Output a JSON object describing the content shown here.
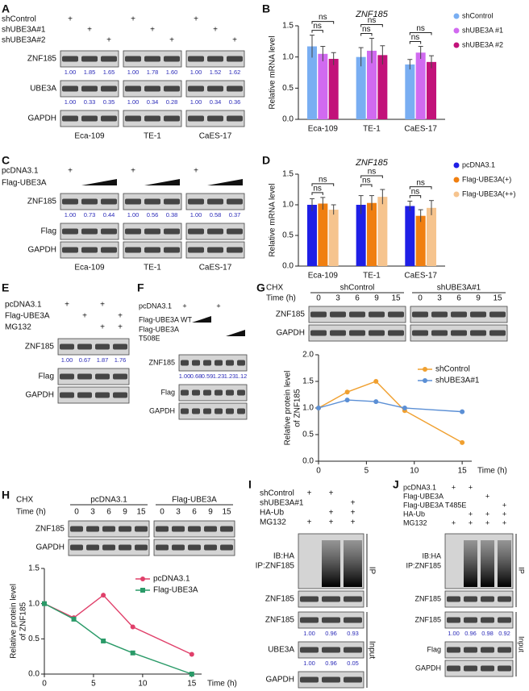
{
  "chart_data": [
    {
      "type": "bar",
      "letter": "B",
      "title": "ZNF185",
      "ylabel": "Relative mRNA level",
      "categories": [
        "Eca-109",
        "TE-1",
        "CaES-17"
      ],
      "series": [
        {
          "name": "shControl",
          "color": "#79aef2",
          "values": [
            1.17,
            1.0,
            0.88
          ],
          "errors": [
            0.18,
            0.15,
            0.08
          ]
        },
        {
          "name": "shUBE3A #1",
          "color": "#d16af0",
          "values": [
            1.05,
            1.1,
            1.07
          ],
          "errors": [
            0.12,
            0.2,
            0.1
          ]
        },
        {
          "name": "shUBE3A #2",
          "color": "#c2127a",
          "values": [
            0.97,
            1.03,
            0.92
          ],
          "errors": [
            0.1,
            0.15,
            0.1
          ]
        }
      ],
      "ylim": [
        0,
        1.5
      ],
      "yticks": [
        {
          "value": 0,
          "label": "0.0"
        },
        0.5,
        {
          "value": 1,
          "label": "1.0"
        },
        1.5
      ],
      "annotations": [
        "ns",
        "ns",
        "ns",
        "ns",
        "ns",
        "ns"
      ],
      "legend": "right"
    },
    {
      "type": "bar",
      "letter": "D",
      "title": "ZNF185",
      "ylabel": "Relative mRNA level",
      "categories": [
        "Eca-109",
        "TE-1",
        "CaES-17"
      ],
      "series": [
        {
          "name": "pcDNA3.1",
          "color": "#1f1fe6",
          "values": [
            1.0,
            1.0,
            0.98
          ],
          "errors": [
            0.1,
            0.15,
            0.08
          ]
        },
        {
          "name": "Flag-UBE3A(+)",
          "color": "#f07f10",
          "values": [
            1.02,
            1.03,
            0.82
          ],
          "errors": [
            0.1,
            0.12,
            0.1
          ]
        },
        {
          "name": "Flag-UBE3A(++)",
          "color": "#f6c48e",
          "values": [
            0.92,
            1.13,
            0.95
          ],
          "errors": [
            0.08,
            0.12,
            0.12
          ]
        }
      ],
      "ylim": [
        0,
        1.5
      ],
      "yticks": [
        {
          "value": 0,
          "label": "0.0"
        },
        0.5,
        {
          "value": 1,
          "label": "1.0"
        },
        1.5
      ],
      "annotations": [
        "ns",
        "ns",
        "ns",
        "ns",
        "ns",
        "ns"
      ],
      "legend": "right"
    },
    {
      "type": "line",
      "ylabel": [
        "Relative protein level",
        "of ZNF185"
      ],
      "xlabel": "Time (h)",
      "x": [
        0,
        3,
        6,
        9,
        15
      ],
      "series": [
        {
          "name": "shControl",
          "color": "#f0a030",
          "marker": "circle",
          "values": [
            1.0,
            1.3,
            1.5,
            0.95,
            0.35
          ]
        },
        {
          "name": "shUBE3A#1",
          "color": "#5b8fd5",
          "marker": "circle",
          "values": [
            1.0,
            1.15,
            1.12,
            1.0,
            0.93
          ]
        }
      ],
      "xlim": [
        0,
        16
      ],
      "xticks": [
        0,
        5,
        10,
        15
      ],
      "ylim": [
        0,
        2
      ],
      "yticks": [
        {
          "value": 0,
          "label": "0.0"
        },
        0.5,
        {
          "value": 1,
          "label": "1.0"
        },
        1.5,
        {
          "value": 2,
          "label": "2.0"
        }
      ],
      "legend": "upper right"
    },
    {
      "type": "line",
      "ylabel": [
        "Relative protein level",
        "of ZNF185"
      ],
      "xlabel": "Time (h)",
      "x": [
        0,
        3,
        6,
        9,
        15
      ],
      "series": [
        {
          "name": "pcDNA3.1",
          "color": "#e0406a",
          "marker": "circle",
          "values": [
            1.0,
            0.8,
            1.12,
            0.67,
            0.28
          ]
        },
        {
          "name": "Flag-UBE3A",
          "color": "#2a9a68",
          "marker": "square",
          "values": [
            1.0,
            0.78,
            0.47,
            0.3,
            0.0
          ]
        }
      ],
      "xlim": [
        0,
        16
      ],
      "xticks": [
        0,
        5,
        10,
        15
      ],
      "ylim": [
        0,
        1.5
      ],
      "yticks": [
        {
          "value": 0,
          "label": "0.0"
        },
        0.5,
        {
          "value": 1,
          "label": "1.0"
        },
        1.5
      ],
      "legend": "upper right"
    }
  ],
  "blots": [
    {
      "letter": "A",
      "treatments": [
        {
          "label": "shControl",
          "marks": [
            "+",
            null,
            null,
            "+",
            null,
            null,
            "+",
            null,
            null
          ]
        },
        {
          "label": "shUBE3A#1",
          "marks": [
            null,
            "+",
            null,
            null,
            "+",
            null,
            null,
            "+",
            null
          ]
        },
        {
          "label": "shUBE3A#2",
          "marks": [
            null,
            null,
            "+",
            null,
            null,
            "+",
            null,
            null,
            "+"
          ]
        }
      ],
      "sections": [
        {
          "rows": [
            {
              "label": "ZNF185",
              "quant": [
                "1.00",
                "1.85",
                "1.65",
                "1.00",
                "1.78",
                "1.60",
                "1.00",
                "1.52",
                "1.62"
              ]
            },
            {
              "label": "UBE3A",
              "quant": [
                "1.00",
                "0.33",
                "0.35",
                "1.00",
                "0.34",
                "0.28",
                "1.00",
                "0.34",
                "0.36"
              ]
            },
            {
              "label": "GAPDH"
            }
          ]
        }
      ],
      "groups": [
        "Eca-109",
        "TE-1",
        "CaES-17"
      ]
    },
    {
      "letter": "C",
      "treatments": [
        {
          "label": "pcDNA3.1",
          "marks": [
            "+",
            null,
            null,
            "+",
            null,
            null,
            "+",
            null,
            null
          ]
        },
        {
          "label": "Flag-UBE3A"
        }
      ],
      "sections": [
        {
          "rows": [
            {
              "label": "ZNF185",
              "quant": [
                "1.00",
                "0.73",
                "0.44",
                "1.00",
                "0.56",
                "0.38",
                "1.00",
                "0.58",
                "0.37"
              ]
            },
            {
              "label": "Flag"
            },
            {
              "label": "GAPDH"
            }
          ]
        }
      ],
      "groups": [
        "Eca-109",
        "TE-1",
        "CaES-17"
      ]
    },
    {
      "letter": "E",
      "treatments": [
        {
          "label": "pcDNA3.1",
          "marks": [
            "+",
            null,
            "+",
            null
          ]
        },
        {
          "label": "Flag-UBE3A",
          "marks": [
            null,
            "+",
            null,
            "+"
          ]
        },
        {
          "label": "MG132",
          "marks": [
            null,
            null,
            "+",
            "+"
          ]
        }
      ],
      "sections": [
        {
          "rows": [
            {
              "label": "ZNF185",
              "quant": [
                "1.00",
                "0.67",
                "1.87",
                "1.76"
              ]
            },
            {
              "label": "Flag"
            },
            {
              "label": "GAPDH"
            }
          ]
        }
      ]
    },
    {
      "letter": "F",
      "treatments": [
        {
          "label": "pcDNA3.1",
          "marks": [
            "+",
            null,
            null,
            "+",
            null,
            null
          ]
        },
        {
          "label": "Flag-UBE3A WT"
        },
        {
          "label": [
            "Flag-UBE3A",
            "T508E"
          ]
        }
      ],
      "sections": [
        {
          "rows": [
            {
              "label": "ZNF185",
              "quant": [
                "1.00",
                "0.68",
                "0.59",
                "1.23",
                "1.23",
                "1.12"
              ]
            },
            {
              "label": "Flag"
            },
            {
              "label": "GAPDH"
            }
          ]
        }
      ]
    },
    {
      "letter": "G",
      "headers": {
        "label": "CHX",
        "groups": [
          "shControl",
          "shUBE3A#1"
        ]
      },
      "treatments": [
        {
          "label": "Time (h)",
          "marks": [
            0,
            3,
            6,
            9,
            15,
            0,
            3,
            6,
            9,
            15
          ]
        }
      ],
      "sections": [
        {
          "rows": [
            {
              "label": "ZNF185"
            },
            {
              "label": "GAPDH"
            }
          ]
        }
      ]
    },
    {
      "letter": "H",
      "headers": {
        "label": "CHX",
        "groups": [
          "pcDNA3.1",
          "Flag-UBE3A"
        ]
      },
      "treatments": [
        {
          "label": "Time (h)",
          "marks": [
            0,
            3,
            6,
            9,
            15,
            0,
            3,
            6,
            9,
            15
          ]
        }
      ],
      "sections": [
        {
          "rows": [
            {
              "label": "ZNF185"
            },
            {
              "label": "GAPDH"
            }
          ]
        }
      ]
    },
    {
      "letter": "I",
      "treatments": [
        {
          "label": "shControl",
          "marks": [
            "+",
            "+",
            null
          ]
        },
        {
          "label": "shUBE3A#1",
          "marks": [
            null,
            null,
            "+"
          ]
        },
        {
          "label": "HA-Ub",
          "marks": [
            null,
            "+",
            "+"
          ]
        },
        {
          "label": "MG132",
          "marks": [
            "+",
            "+",
            "+"
          ]
        }
      ],
      "sections": [
        {
          "label": "IP",
          "rows": [
            {
              "label": [
                "IB:HA",
                "IP:ZNF185"
              ]
            },
            {
              "label": "ZNF185"
            }
          ]
        },
        {
          "label": "Input",
          "rows": [
            {
              "label": "ZNF185",
              "quant": [
                "1.00",
                "0.96",
                "0.93"
              ]
            },
            {
              "label": "UBE3A",
              "quant": [
                "1.00",
                "0.96",
                "0.05"
              ]
            },
            {
              "label": "GAPDH"
            }
          ]
        }
      ]
    },
    {
      "letter": "J",
      "treatments": [
        {
          "label": "pcDNA3.1",
          "marks": [
            "+",
            "+",
            null,
            null
          ]
        },
        {
          "label": "Flag-UBE3A",
          "marks": [
            null,
            null,
            "+",
            null
          ]
        },
        {
          "label": "Flag-UBE3A T485E",
          "marks": [
            null,
            null,
            null,
            "+"
          ]
        },
        {
          "label": "HA-Ub",
          "marks": [
            null,
            "+",
            "+",
            "+"
          ]
        },
        {
          "label": "MG132",
          "marks": [
            "+",
            "+",
            "+",
            "+"
          ]
        }
      ],
      "sections": [
        {
          "label": "IP",
          "rows": [
            {
              "label": [
                "IB:HA",
                "IP:ZNF185"
              ]
            },
            {
              "label": "ZNF185"
            }
          ]
        },
        {
          "label": "Input",
          "rows": [
            {
              "label": "ZNF185",
              "quant": [
                "1.00",
                "0.96",
                "0.98",
                "0.92"
              ]
            },
            {
              "label": "Flag"
            },
            {
              "label": "GAPDH"
            }
          ]
        }
      ]
    }
  ]
}
